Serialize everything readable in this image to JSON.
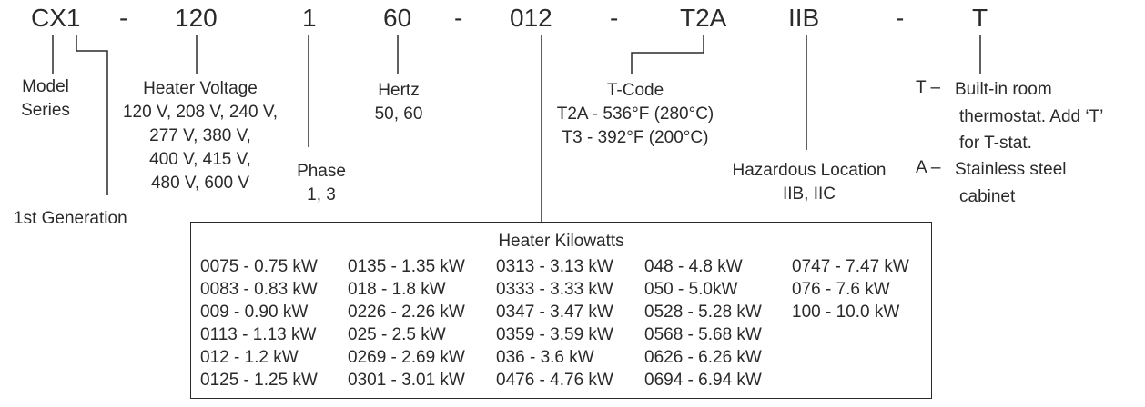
{
  "model_code": {
    "parts": [
      "CX1",
      "-",
      "120",
      "1",
      "60",
      "-",
      "012",
      "-",
      "T2A",
      "IIB",
      "-",
      "T"
    ]
  },
  "labels": {
    "model_series": [
      "Model",
      "Series"
    ],
    "first_generation": "1st Generation",
    "heater_voltage": {
      "title": "Heater Voltage",
      "lines": [
        "120 V, 208 V, 240 V,",
        "277 V, 380 V,",
        "400 V, 415 V,",
        "480 V, 600 V"
      ]
    },
    "phase": {
      "title": "Phase",
      "value": "1, 3"
    },
    "hertz": {
      "title": "Hertz",
      "value": "50, 60"
    },
    "t_code": {
      "title": "T-Code",
      "lines": [
        "T2A - 536°F (280°C)",
        "T3 - 392°F (200°C)"
      ]
    },
    "hazardous_location": {
      "title": "Hazardous Location",
      "value": "IIB, IIC"
    },
    "options": {
      "t_key": "T –",
      "t_lines": [
        "Built-in room",
        "thermostat. Add ‘T’",
        "for T-stat."
      ],
      "a_key": "A –",
      "a_lines": [
        "Stainless steel",
        "cabinet"
      ]
    }
  },
  "heater_kilowatts": {
    "title": "Heater Kilowatts",
    "columns": [
      [
        "0075 - 0.75 kW",
        "0083 - 0.83 kW",
        "009 - 0.90 kW",
        "0113 - 1.13 kW",
        "012 - 1.2 kW",
        "0125 - 1.25 kW"
      ],
      [
        "0135 - 1.35 kW",
        "018 - 1.8 kW",
        "0226 - 2.26 kW",
        "025 - 2.5 kW",
        "0269 - 2.69 kW",
        "0301 - 3.01 kW"
      ],
      [
        "0313 - 3.13 kW",
        "0333 - 3.33 kW",
        "0347 - 3.47 kW",
        "0359 - 3.59 kW",
        "036 - 3.6 kW",
        "0476 - 4.76 kW"
      ],
      [
        "048 - 4.8 kW",
        "050 - 5.0kW",
        "0528 - 5.28 kW",
        "0568 - 5.68 kW",
        "0626 - 6.26 kW",
        "0694 - 6.94 kW"
      ],
      [
        "0747 - 7.47 kW",
        "076 - 7.6 kW",
        "100 - 10.0 kW"
      ]
    ]
  }
}
